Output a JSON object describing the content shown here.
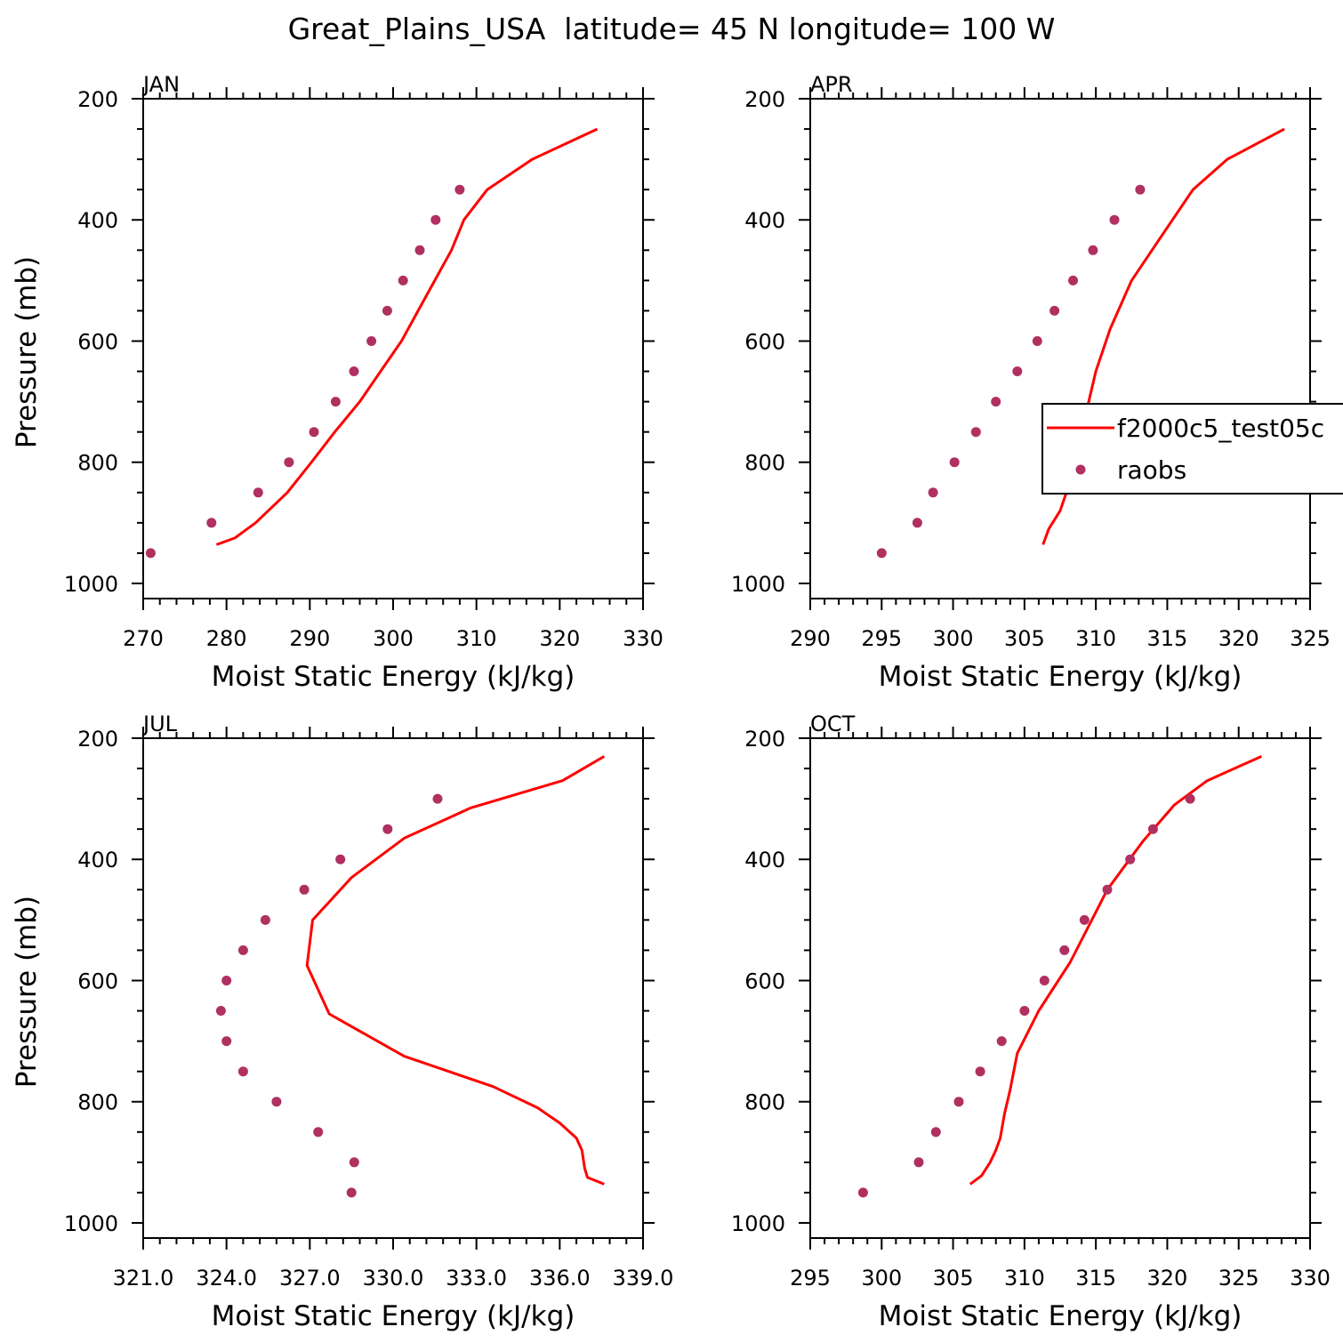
{
  "figure": {
    "title": "Great_Plains_USA  latitude= 45 N longitude= 100 W"
  },
  "legend": {
    "panel": 1,
    "entries": [
      {
        "label": "f2000c5_test05c",
        "kind": "line",
        "color": "#ff0000"
      },
      {
        "label": "raobs",
        "kind": "marker",
        "color": "#b03060"
      }
    ]
  },
  "colors": {
    "model": "#ff0000",
    "obs": "#b03060",
    "frame": "#000000"
  },
  "chart_data": [
    {
      "type": "line",
      "panel_label": "JAN",
      "xlabel": "Moist Static Energy (kJ/kg)",
      "ylabel": "Pressure (mb)",
      "xlim": [
        270,
        330
      ],
      "ylim": [
        200,
        1025
      ],
      "y_inverted": true,
      "xticks": [
        270,
        280,
        290,
        300,
        310,
        320,
        330
      ],
      "xtick_labels": [
        "270",
        "280",
        "290",
        "300",
        "310",
        "320",
        "330"
      ],
      "yticks": [
        200,
        400,
        600,
        800,
        1000
      ],
      "ytick_labels": [
        "200",
        "400",
        "600",
        "800",
        "1000"
      ],
      "show_ylabel": true,
      "series": [
        {
          "name": "f2000c5_test05c",
          "kind": "line",
          "x": [
            278.8,
            281.0,
            283.5,
            287.3,
            290.2,
            293.0,
            296.0,
            298.5,
            301.0,
            303.0,
            305.0,
            307.0,
            308.5,
            311.3,
            316.7,
            324.5
          ],
          "y": [
            936,
            925,
            900,
            850,
            800,
            750,
            700,
            650,
            600,
            550,
            500,
            450,
            400,
            350,
            300,
            250
          ]
        },
        {
          "name": "raobs",
          "kind": "scatter",
          "x": [
            270.9,
            278.2,
            283.8,
            287.5,
            290.5,
            293.1,
            295.3,
            297.4,
            299.3,
            301.2,
            303.2,
            305.1,
            308.0
          ],
          "y": [
            950,
            900,
            850,
            800,
            750,
            700,
            650,
            600,
            550,
            500,
            450,
            400,
            350
          ]
        }
      ]
    },
    {
      "type": "line",
      "panel_label": "APR",
      "xlabel": "Moist Static Energy (kJ/kg)",
      "ylabel": "",
      "xlim": [
        290,
        325
      ],
      "ylim": [
        200,
        1025
      ],
      "y_inverted": true,
      "xticks": [
        290,
        295,
        300,
        305,
        310,
        315,
        320,
        325
      ],
      "xtick_labels": [
        "290",
        "295",
        "300",
        "305",
        "310",
        "315",
        "320",
        "325"
      ],
      "yticks": [
        200,
        400,
        600,
        800,
        1000
      ],
      "ytick_labels": [
        "200",
        "400",
        "600",
        "800",
        "1000"
      ],
      "show_ylabel": false,
      "series": [
        {
          "name": "f2000c5_test05c",
          "kind": "line",
          "x": [
            306.3,
            306.7,
            307.5,
            308.3,
            308.7,
            309.0,
            309.5,
            310.0,
            311.0,
            312.5,
            314.5,
            316.8,
            319.2,
            323.2
          ],
          "y": [
            936,
            910,
            880,
            825,
            790,
            745,
            700,
            650,
            580,
            500,
            430,
            350,
            300,
            250
          ]
        },
        {
          "name": "raobs",
          "kind": "scatter",
          "x": [
            295.0,
            297.5,
            298.6,
            300.1,
            301.6,
            303.0,
            304.5,
            305.9,
            307.1,
            308.4,
            309.8,
            311.3,
            313.1
          ],
          "y": [
            950,
            900,
            850,
            800,
            750,
            700,
            650,
            600,
            550,
            500,
            450,
            400,
            350
          ]
        }
      ]
    },
    {
      "type": "line",
      "panel_label": "JUL",
      "xlabel": "Moist Static Energy (kJ/kg)",
      "ylabel": "Pressure (mb)",
      "xlim": [
        321.0,
        339.0
      ],
      "ylim": [
        200,
        1025
      ],
      "y_inverted": true,
      "xticks": [
        321.0,
        324.0,
        327.0,
        330.0,
        333.0,
        336.0,
        339.0
      ],
      "xtick_labels": [
        "321.0",
        "324.0",
        "327.0",
        "330.0",
        "333.0",
        "336.0",
        "339.0"
      ],
      "yticks": [
        200,
        400,
        600,
        800,
        1000
      ],
      "ytick_labels": [
        "200",
        "400",
        "600",
        "800",
        "1000"
      ],
      "show_ylabel": true,
      "series": [
        {
          "name": "f2000c5_test05c",
          "kind": "line",
          "x": [
            337.6,
            337.0,
            336.9,
            336.8,
            336.6,
            336.0,
            335.2,
            333.6,
            330.4,
            327.7,
            326.9,
            327.1,
            328.5,
            330.4,
            332.8,
            336.1,
            337.6
          ],
          "y": [
            936,
            925,
            910,
            880,
            860,
            835,
            810,
            775,
            725,
            655,
            575,
            500,
            430,
            365,
            315,
            270,
            230
          ]
        },
        {
          "name": "raobs",
          "kind": "scatter",
          "x": [
            328.5,
            328.6,
            327.3,
            325.8,
            324.6,
            324.0,
            323.8,
            324.0,
            324.6,
            325.4,
            326.8,
            328.1,
            329.8,
            331.6
          ],
          "y": [
            950,
            900,
            850,
            800,
            750,
            700,
            650,
            600,
            550,
            500,
            450,
            400,
            350,
            300
          ]
        }
      ]
    },
    {
      "type": "line",
      "panel_label": "OCT",
      "xlabel": "Moist Static Energy (kJ/kg)",
      "ylabel": "",
      "xlim": [
        295,
        330
      ],
      "ylim": [
        200,
        1025
      ],
      "y_inverted": true,
      "xticks": [
        295,
        300,
        305,
        310,
        315,
        320,
        325,
        330
      ],
      "xtick_labels": [
        "295",
        "300",
        "305",
        "310",
        "315",
        "320",
        "325",
        "330"
      ],
      "yticks": [
        200,
        400,
        600,
        800,
        1000
      ],
      "ytick_labels": [
        "200",
        "400",
        "600",
        "800",
        "1000"
      ],
      "show_ylabel": false,
      "series": [
        {
          "name": "f2000c5_test05c",
          "kind": "line",
          "x": [
            306.2,
            307.0,
            307.6,
            308.0,
            308.3,
            308.6,
            309.0,
            309.5,
            311.0,
            313.2,
            315.8,
            318.3,
            320.5,
            322.8,
            326.6
          ],
          "y": [
            936,
            922,
            900,
            880,
            860,
            820,
            780,
            720,
            650,
            570,
            450,
            370,
            310,
            270,
            230
          ]
        },
        {
          "name": "raobs",
          "kind": "scatter",
          "x": [
            298.7,
            302.6,
            303.8,
            305.4,
            306.9,
            308.4,
            310.0,
            311.4,
            312.8,
            314.2,
            315.8,
            317.4,
            319.0,
            321.6
          ],
          "y": [
            950,
            900,
            850,
            800,
            750,
            700,
            650,
            600,
            550,
            500,
            450,
            400,
            350,
            300
          ]
        }
      ]
    }
  ]
}
